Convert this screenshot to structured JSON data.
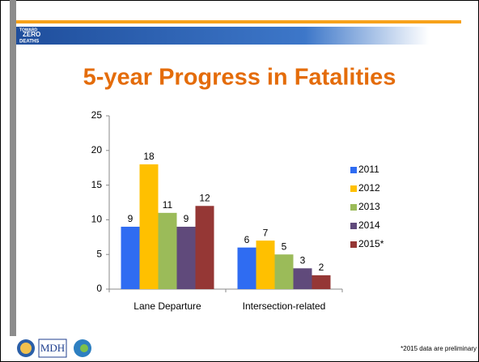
{
  "header": {
    "logo": [
      "TOWARD",
      "ZERO",
      "DEATHS"
    ]
  },
  "chart_data": {
    "type": "bar",
    "title": "5-year Progress in Fatalities",
    "categories": [
      "Lane Departure",
      "Intersection-related"
    ],
    "series": [
      {
        "name": "2011",
        "color": "#2f6cf2",
        "values": [
          9,
          6
        ]
      },
      {
        "name": "2012",
        "color": "#ffc000",
        "values": [
          18,
          7
        ]
      },
      {
        "name": "2013",
        "color": "#9bbb59",
        "values": [
          11,
          5
        ]
      },
      {
        "name": "2014",
        "color": "#604a7b",
        "values": [
          9,
          3
        ]
      },
      {
        "name": "2015*",
        "color": "#953735",
        "values": [
          12,
          2
        ]
      }
    ],
    "ylim": [
      0,
      25
    ],
    "yticks": [
      0,
      5,
      10,
      15,
      20,
      25
    ],
    "legend": "right"
  },
  "footer": {
    "logo": "MDH",
    "note": "*2015 data are preliminary"
  }
}
